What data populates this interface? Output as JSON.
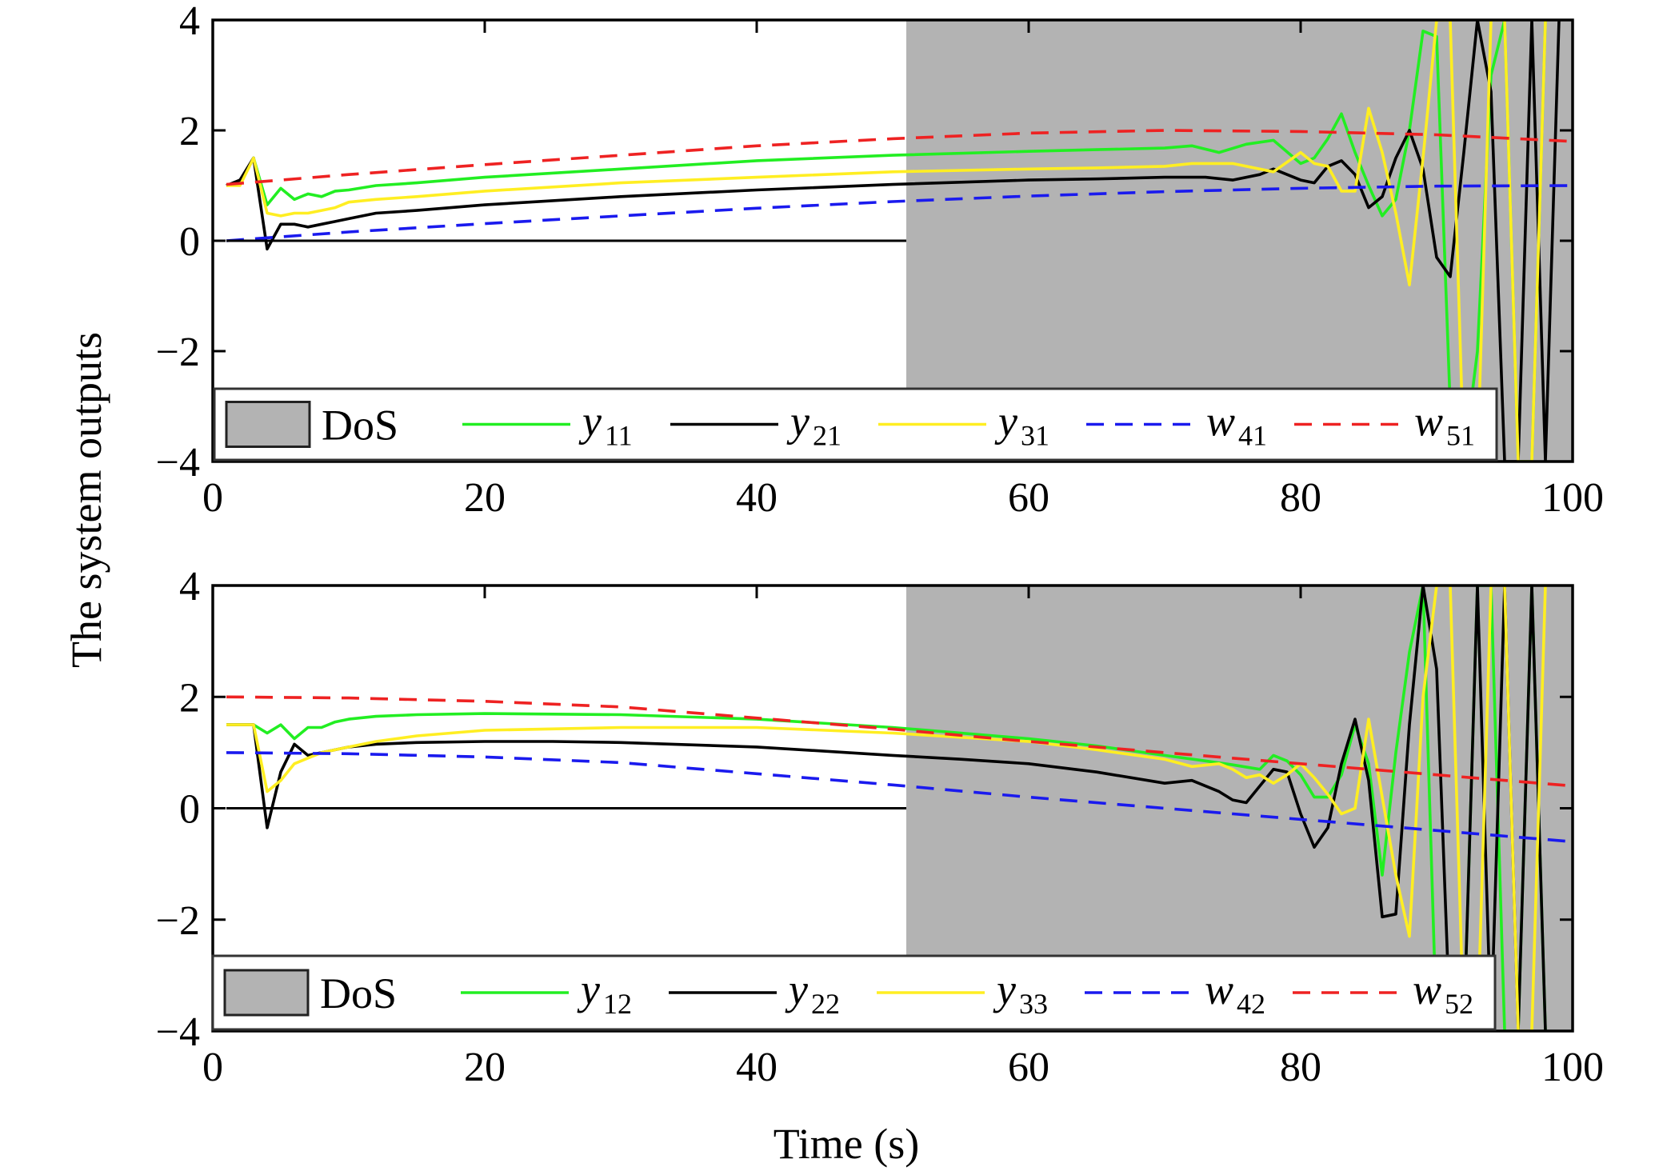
{
  "figure": {
    "ylabel": "The system outputs",
    "xlabel": "Time (s)"
  },
  "chart_data": [
    {
      "type": "line",
      "xlim": [
        0,
        100
      ],
      "ylim": [
        -4,
        4
      ],
      "xticks": [
        0,
        20,
        40,
        60,
        80,
        100
      ],
      "yticks": [
        4,
        2,
        0,
        -2,
        -4
      ],
      "xtick_labels": [
        "0",
        "20",
        "40",
        "60",
        "80",
        "100"
      ],
      "ytick_labels": [
        "4",
        "2",
        "0",
        "−2",
        "−4"
      ],
      "grid": false,
      "legend_position": "bottom",
      "shaded_region": {
        "name": "DoS",
        "x_from": 51,
        "x_to": 100,
        "color": "#b3b3b3"
      },
      "zero_line": {
        "x_from": 1,
        "x_to": 51,
        "y": 0,
        "color": "#000000"
      },
      "series": [
        {
          "name": "y",
          "sub": "11",
          "color": "#22ee22",
          "dash": "solid",
          "x": [
            1,
            2,
            3,
            4,
            5,
            6,
            7,
            8,
            9,
            10,
            12,
            15,
            20,
            30,
            40,
            50,
            60,
            65,
            70,
            72,
            74,
            76,
            78,
            80,
            81,
            82,
            83,
            84,
            85,
            86,
            87,
            88,
            89,
            90,
            91,
            92,
            93,
            94,
            95,
            96,
            97,
            98
          ],
          "y": [
            1.0,
            1.05,
            1.5,
            0.65,
            0.95,
            0.75,
            0.85,
            0.8,
            0.9,
            0.92,
            1.0,
            1.05,
            1.15,
            1.3,
            1.45,
            1.55,
            1.62,
            1.65,
            1.68,
            1.72,
            1.6,
            1.75,
            1.82,
            1.4,
            1.5,
            1.85,
            2.3,
            1.6,
            1.0,
            0.45,
            0.75,
            2.0,
            3.8,
            3.7,
            -3.0,
            -4.0,
            -2.0,
            3.0,
            4.0,
            -4.0,
            -4.0,
            4.0
          ]
        },
        {
          "name": "y",
          "sub": "21",
          "color": "#000000",
          "dash": "solid",
          "x": [
            1,
            2,
            3,
            4,
            5,
            6,
            7,
            8,
            9,
            10,
            12,
            15,
            20,
            30,
            40,
            50,
            60,
            65,
            70,
            73,
            75,
            77,
            78,
            79,
            80,
            81,
            82,
            83,
            84,
            85,
            86,
            87,
            88,
            89,
            90,
            91,
            92,
            93,
            94,
            95,
            96,
            97,
            98,
            99
          ],
          "y": [
            1.0,
            1.1,
            1.5,
            -0.15,
            0.3,
            0.3,
            0.25,
            0.3,
            0.35,
            0.4,
            0.5,
            0.55,
            0.65,
            0.8,
            0.92,
            1.02,
            1.1,
            1.12,
            1.15,
            1.15,
            1.1,
            1.2,
            1.3,
            1.2,
            1.1,
            1.05,
            1.35,
            1.45,
            1.2,
            0.6,
            0.8,
            1.5,
            2.0,
            1.3,
            -0.3,
            -0.65,
            1.6,
            4.0,
            2.7,
            -4.0,
            -4.0,
            4.0,
            -4.0,
            4.0
          ]
        },
        {
          "name": "y",
          "sub": "31",
          "color": "#ffee22",
          "dash": "solid",
          "x": [
            1,
            2,
            3,
            4,
            5,
            6,
            7,
            8,
            9,
            10,
            12,
            15,
            20,
            30,
            40,
            50,
            60,
            65,
            70,
            72,
            75,
            78,
            80,
            81,
            82,
            83,
            84,
            85,
            86,
            87,
            88,
            89,
            90,
            91,
            92,
            93,
            94,
            95,
            96,
            97,
            98
          ],
          "y": [
            1.0,
            1.0,
            1.5,
            0.5,
            0.45,
            0.5,
            0.5,
            0.55,
            0.6,
            0.7,
            0.75,
            0.8,
            0.9,
            1.05,
            1.15,
            1.25,
            1.3,
            1.32,
            1.35,
            1.4,
            1.4,
            1.25,
            1.6,
            1.4,
            1.35,
            0.9,
            0.9,
            2.4,
            1.6,
            0.5,
            -0.8,
            1.5,
            4.0,
            4.0,
            -4.0,
            -4.0,
            4.0,
            4.0,
            -4.0,
            -4.0,
            4.0
          ]
        },
        {
          "name": "w",
          "sub": "41",
          "color": "#1a1aee",
          "dash": "22 14",
          "fn": "ramp_w41",
          "x": [
            1,
            10,
            20,
            30,
            40,
            50,
            60,
            70,
            80,
            90,
            100
          ],
          "y": [
            0.0,
            0.16,
            0.31,
            0.45,
            0.59,
            0.71,
            0.81,
            0.89,
            0.95,
            0.99,
            1.0
          ]
        },
        {
          "name": "w",
          "sub": "51",
          "color": "#ee2222",
          "dash": "22 14",
          "x": [
            1,
            10,
            20,
            30,
            40,
            50,
            60,
            70,
            80,
            90,
            100
          ],
          "y": [
            1.02,
            1.2,
            1.38,
            1.55,
            1.72,
            1.85,
            1.95,
            2.0,
            1.98,
            1.92,
            1.8
          ]
        }
      ]
    },
    {
      "type": "line",
      "xlim": [
        0,
        100
      ],
      "ylim": [
        -4,
        4
      ],
      "xticks": [
        0,
        20,
        40,
        60,
        80,
        100
      ],
      "yticks": [
        4,
        2,
        0,
        -2,
        -4
      ],
      "xtick_labels": [
        "0",
        "20",
        "40",
        "60",
        "80",
        "100"
      ],
      "ytick_labels": [
        "4",
        "2",
        "0",
        "−2",
        "−4"
      ],
      "grid": false,
      "legend_position": "bottom",
      "shaded_region": {
        "name": "DoS",
        "x_from": 51,
        "x_to": 100,
        "color": "#b3b3b3"
      },
      "zero_line": {
        "x_from": 1,
        "x_to": 51,
        "y": 0,
        "color": "#000000"
      },
      "series": [
        {
          "name": "y",
          "sub": "12",
          "color": "#22ee22",
          "dash": "solid",
          "x": [
            1,
            2,
            3,
            4,
            5,
            6,
            7,
            8,
            9,
            10,
            12,
            15,
            20,
            30,
            40,
            50,
            60,
            65,
            70,
            73,
            75,
            77,
            78,
            79,
            80,
            81,
            82,
            83,
            84,
            85,
            86,
            87,
            88,
            89,
            90,
            91,
            92,
            93,
            94,
            95,
            96,
            97,
            98
          ],
          "y": [
            1.5,
            1.5,
            1.5,
            1.35,
            1.5,
            1.25,
            1.45,
            1.45,
            1.55,
            1.6,
            1.65,
            1.68,
            1.7,
            1.68,
            1.6,
            1.45,
            1.25,
            1.12,
            0.95,
            0.85,
            0.78,
            0.7,
            0.95,
            0.85,
            0.6,
            0.2,
            0.2,
            0.6,
            1.5,
            0.8,
            -1.2,
            1.0,
            2.8,
            4.0,
            -4.0,
            -4.0,
            -4.0,
            4.0,
            4.0,
            -4.0,
            -4.0,
            4.0,
            -4.0
          ]
        },
        {
          "name": "y",
          "sub": "22",
          "color": "#000000",
          "dash": "solid",
          "x": [
            1,
            2,
            3,
            4,
            5,
            6,
            7,
            8,
            9,
            10,
            12,
            15,
            20,
            25,
            30,
            40,
            50,
            55,
            60,
            65,
            70,
            72,
            74,
            75,
            76,
            77,
            78,
            79,
            80,
            81,
            82,
            83,
            84,
            85,
            86,
            87,
            88,
            89,
            90,
            91,
            92,
            93,
            94,
            95,
            96,
            97,
            98
          ],
          "y": [
            1.5,
            1.5,
            1.5,
            -0.35,
            0.65,
            1.15,
            0.95,
            1.0,
            1.05,
            1.1,
            1.15,
            1.18,
            1.2,
            1.2,
            1.18,
            1.1,
            0.95,
            0.88,
            0.8,
            0.65,
            0.45,
            0.5,
            0.3,
            0.15,
            0.1,
            0.4,
            0.7,
            0.65,
            -0.1,
            -0.7,
            -0.35,
            0.8,
            1.6,
            0.5,
            -1.95,
            -1.9,
            1.5,
            4.0,
            2.5,
            -4.0,
            -4.0,
            4.0,
            -4.0,
            4.0,
            -4.0,
            4.0,
            -4.0
          ]
        },
        {
          "name": "y",
          "sub": "33",
          "color": "#ffee22",
          "dash": "solid",
          "x": [
            1,
            2,
            3,
            4,
            5,
            6,
            7,
            8,
            9,
            10,
            12,
            15,
            20,
            30,
            40,
            50,
            60,
            65,
            70,
            72,
            74,
            75,
            76,
            77,
            78,
            79,
            80,
            81,
            82,
            83,
            84,
            85,
            86,
            87,
            88,
            89,
            90,
            91,
            92,
            93,
            94,
            95,
            96,
            97,
            98
          ],
          "y": [
            1.5,
            1.5,
            1.5,
            0.3,
            0.5,
            0.8,
            0.9,
            1.0,
            1.05,
            1.1,
            1.2,
            1.3,
            1.4,
            1.45,
            1.45,
            1.35,
            1.2,
            1.05,
            0.88,
            0.75,
            0.8,
            0.7,
            0.55,
            0.6,
            0.45,
            0.6,
            0.8,
            0.55,
            0.25,
            -0.1,
            0.0,
            1.6,
            0.2,
            -1.2,
            -2.3,
            2.0,
            4.0,
            4.0,
            -4.0,
            -4.0,
            4.0,
            4.0,
            -4.0,
            -4.0,
            4.0
          ]
        },
        {
          "name": "w",
          "sub": "42",
          "color": "#1a1aee",
          "dash": "22 14",
          "x": [
            1,
            10,
            20,
            30,
            40,
            50,
            60,
            70,
            80,
            90,
            100
          ],
          "y": [
            1.0,
            0.98,
            0.92,
            0.82,
            0.62,
            0.42,
            0.2,
            0.0,
            -0.2,
            -0.4,
            -0.6
          ]
        },
        {
          "name": "w",
          "sub": "52",
          "color": "#ee2222",
          "dash": "22 14",
          "x": [
            1,
            10,
            20,
            30,
            40,
            50,
            60,
            70,
            80,
            90,
            100
          ],
          "y": [
            2.0,
            1.98,
            1.92,
            1.82,
            1.62,
            1.42,
            1.2,
            1.0,
            0.8,
            0.6,
            0.4
          ]
        }
      ]
    }
  ]
}
